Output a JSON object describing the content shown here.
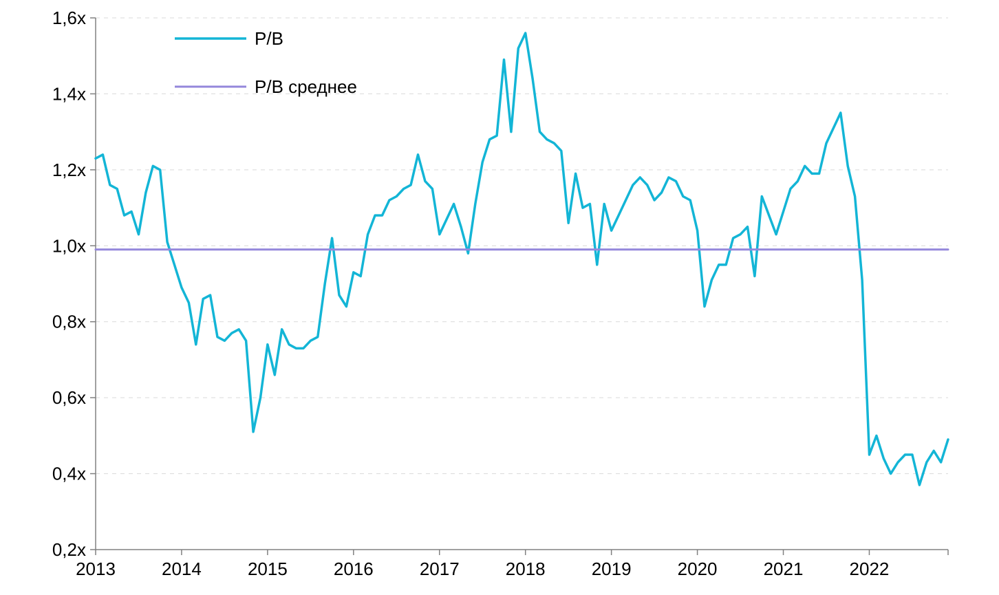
{
  "chart_data": {
    "type": "line",
    "title": "",
    "xlabel": "",
    "ylabel": "",
    "x_tick_labels": [
      "2013",
      "2014",
      "2015",
      "2016",
      "2017",
      "2018",
      "2019",
      "2020",
      "2021",
      "2022"
    ],
    "y_tick_labels": [
      "0,2x",
      "0,4x",
      "0,6x",
      "0,8x",
      "1,0x",
      "1,2x",
      "1,4x",
      "1,6x"
    ],
    "y_ticks": [
      0.2,
      0.4,
      0.6,
      0.8,
      1.0,
      1.2,
      1.4,
      1.6
    ],
    "ylim": [
      0.2,
      1.6
    ],
    "xlim": [
      "2013-01",
      "2022-12"
    ],
    "grid": "horizontal",
    "legend_position": "top-left",
    "series": [
      {
        "name": "P/B",
        "color": "#13B5D6",
        "x": [
          "2013-01",
          "2013-02",
          "2013-03",
          "2013-04",
          "2013-05",
          "2013-06",
          "2013-07",
          "2013-08",
          "2013-09",
          "2013-10",
          "2013-11",
          "2013-12",
          "2014-01",
          "2014-02",
          "2014-03",
          "2014-04",
          "2014-05",
          "2014-06",
          "2014-07",
          "2014-08",
          "2014-09",
          "2014-10",
          "2014-11",
          "2014-12",
          "2015-01",
          "2015-02",
          "2015-03",
          "2015-04",
          "2015-05",
          "2015-06",
          "2015-07",
          "2015-08",
          "2015-09",
          "2015-10",
          "2015-11",
          "2015-12",
          "2016-01",
          "2016-02",
          "2016-03",
          "2016-04",
          "2016-05",
          "2016-06",
          "2016-07",
          "2016-08",
          "2016-09",
          "2016-10",
          "2016-11",
          "2016-12",
          "2017-01",
          "2017-02",
          "2017-03",
          "2017-04",
          "2017-05",
          "2017-06",
          "2017-07",
          "2017-08",
          "2017-09",
          "2017-10",
          "2017-11",
          "2017-12",
          "2018-01",
          "2018-02",
          "2018-03",
          "2018-04",
          "2018-05",
          "2018-06",
          "2018-07",
          "2018-08",
          "2018-09",
          "2018-10",
          "2018-11",
          "2018-12",
          "2019-01",
          "2019-02",
          "2019-03",
          "2019-04",
          "2019-05",
          "2019-06",
          "2019-07",
          "2019-08",
          "2019-09",
          "2019-10",
          "2019-11",
          "2019-12",
          "2020-01",
          "2020-02",
          "2020-03",
          "2020-04",
          "2020-05",
          "2020-06",
          "2020-07",
          "2020-08",
          "2020-09",
          "2020-10",
          "2020-11",
          "2020-12",
          "2021-01",
          "2021-02",
          "2021-03",
          "2021-04",
          "2021-05",
          "2021-06",
          "2021-07",
          "2021-08",
          "2021-09",
          "2021-10",
          "2021-11",
          "2021-12",
          "2022-01",
          "2022-02",
          "2022-03",
          "2022-04",
          "2022-05",
          "2022-06",
          "2022-07",
          "2022-08",
          "2022-09",
          "2022-10",
          "2022-11",
          "2022-12"
        ],
        "values": [
          1.23,
          1.24,
          1.16,
          1.15,
          1.08,
          1.09,
          1.03,
          1.14,
          1.21,
          1.2,
          1.01,
          0.95,
          0.89,
          0.85,
          0.74,
          0.86,
          0.87,
          0.76,
          0.75,
          0.77,
          0.78,
          0.75,
          0.51,
          0.6,
          0.74,
          0.66,
          0.78,
          0.74,
          0.73,
          0.73,
          0.75,
          0.76,
          0.9,
          1.02,
          0.87,
          0.84,
          0.93,
          0.92,
          1.03,
          1.08,
          1.08,
          1.12,
          1.13,
          1.15,
          1.16,
          1.24,
          1.17,
          1.15,
          1.03,
          1.07,
          1.11,
          1.05,
          0.98,
          1.11,
          1.22,
          1.28,
          1.29,
          1.49,
          1.3,
          1.52,
          1.56,
          1.44,
          1.3,
          1.28,
          1.27,
          1.25,
          1.06,
          1.19,
          1.1,
          1.11,
          0.95,
          1.11,
          1.04,
          1.08,
          1.12,
          1.16,
          1.18,
          1.16,
          1.12,
          1.14,
          1.18,
          1.17,
          1.13,
          1.12,
          1.04,
          0.84,
          0.91,
          0.95,
          0.95,
          1.02,
          1.03,
          1.05,
          0.92,
          1.13,
          1.08,
          1.03,
          1.09,
          1.15,
          1.17,
          1.21,
          1.19,
          1.19,
          1.27,
          1.31,
          1.35,
          1.21,
          1.13,
          0.91,
          0.45,
          0.5,
          0.44,
          0.4,
          0.43,
          0.45,
          0.45,
          0.37,
          0.43,
          0.46,
          0.43,
          0.49
        ]
      },
      {
        "name": "P/B среднее",
        "color": "#9487DB",
        "x": [
          "2013-01",
          "2022-12"
        ],
        "values": [
          0.99,
          0.99
        ]
      }
    ]
  }
}
